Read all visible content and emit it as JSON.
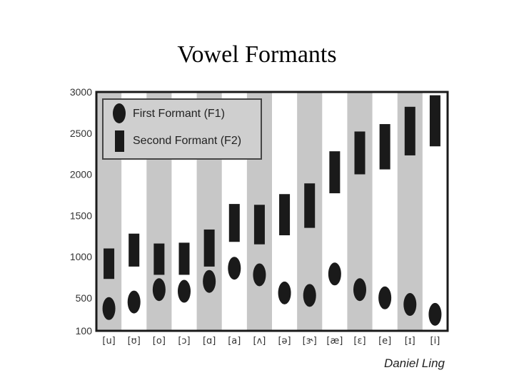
{
  "title": "Vowel Formants",
  "credit": "Daniel Ling",
  "colors": {
    "band": "#c7c7c7",
    "mark": "#1a1a1a",
    "frame": "#1a1a1a",
    "tick_text": "#333333"
  },
  "chart_data": {
    "type": "range",
    "categories": [
      "[u]",
      "[ʊ]",
      "[o]",
      "[ɔ]",
      "[ɑ]",
      "[a]",
      "[ʌ]",
      "[ə]",
      "[ɝ]",
      "[æ]",
      "[ɛ]",
      "[e]",
      "[ɪ]",
      "[i]"
    ],
    "yticks": [
      "3000",
      "2500",
      "2000",
      "1500",
      "1000",
      "500",
      "100"
    ],
    "ylim": [
      100,
      3000
    ],
    "grid": false,
    "alternating_bands": true,
    "legend_position": "top-left",
    "series": [
      {
        "name": "First Formant (F1)",
        "marker": "ellipse",
        "values": [
          370,
          450,
          600,
          580,
          700,
          860,
          780,
          560,
          530,
          790,
          600,
          500,
          420,
          300
        ]
      },
      {
        "name": "Second Formant (F2)",
        "marker": "bar",
        "ranges": [
          [
            730,
            1100
          ],
          [
            880,
            1280
          ],
          [
            780,
            1160
          ],
          [
            780,
            1170
          ],
          [
            880,
            1330
          ],
          [
            1180,
            1640
          ],
          [
            1150,
            1630
          ],
          [
            1260,
            1760
          ],
          [
            1350,
            1890
          ],
          [
            1770,
            2280
          ],
          [
            2000,
            2520
          ],
          [
            2060,
            2610
          ],
          [
            2230,
            2820
          ],
          [
            2340,
            2960
          ]
        ]
      }
    ]
  }
}
